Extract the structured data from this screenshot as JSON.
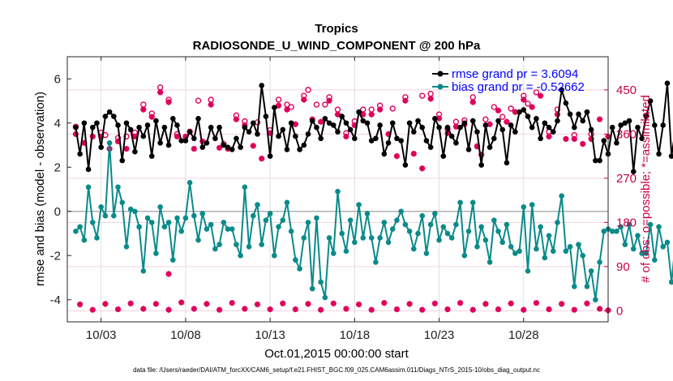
{
  "chart_data": {
    "type": "line",
    "title": "Tropics",
    "subtitle": "RADIOSONDE_U_WIND_COMPONENT @ 200 hPa",
    "xlabel": "Oct.01,2015 00:00:00 start",
    "ylabel": "rmse and bias (model - observation)",
    "y2label": "# of obs: o=possible; *=assimilated",
    "footnote": "data file: /Users/raeder/DAI/ATM_forcXX/CAM6_setup/f.e21.FHIST_BGC.f09_025.CAM6assim.011/Diags_NTrS_2015-10/obs_diag_output.nc",
    "xlim": [
      0,
      32
    ],
    "ylim": [
      -5,
      7
    ],
    "y2lim": [
      -22.5,
      517.5
    ],
    "grid": true,
    "legend_position": "top-right",
    "x_ticks": [
      2,
      7,
      12,
      17,
      22,
      27
    ],
    "x_tick_labels": [
      "10/03",
      "10/08",
      "10/13",
      "10/18",
      "10/23",
      "10/28"
    ],
    "y_ticks": [
      -4,
      -2,
      0,
      2,
      4,
      6
    ],
    "y_tick_labels": [
      "-4",
      "-2",
      "0",
      "2",
      "4",
      "6"
    ],
    "y2_ticks": [
      0,
      90,
      180,
      270,
      360,
      450
    ],
    "y2_tick_labels": [
      "0",
      "90",
      "180",
      "270",
      "360",
      "450"
    ],
    "zero_line": 0,
    "x_start": 0.5,
    "x_step": 0.25,
    "series": [
      {
        "name": "rmse",
        "legend_label": "rmse grand pr = 3.6094",
        "color": "#000000",
        "marker": "circle",
        "values": [
          3.8,
          2.6,
          4.0,
          1.9,
          3.8,
          4.0,
          2.9,
          4.3,
          4.5,
          4.3,
          3.9,
          2.3,
          4.0,
          3.7,
          2.7,
          3.8,
          3.4,
          3.9,
          2.5,
          4.1,
          3.1,
          3.8,
          3.0,
          4.2,
          3.9,
          3.2,
          3.2,
          3.6,
          3.3,
          4.2,
          2.9,
          3.1,
          3.8,
          3.3,
          3.8,
          3.0,
          2.9,
          2.8,
          3.3,
          2.9,
          3.8,
          3.6,
          4.0,
          3.5,
          5.7,
          4.3,
          2.5,
          4.7,
          3.4,
          3.7,
          2.8,
          4.0,
          3.4,
          2.8,
          3.0,
          3.5,
          4.1,
          3.8,
          3.3,
          4.2,
          4.0,
          3.9,
          3.6,
          4.3,
          4.0,
          3.7,
          3.3,
          4.5,
          4.1,
          4.0,
          3.2,
          3.3,
          3.9,
          2.6,
          3.1,
          4.0,
          3.3,
          3.2,
          2.1,
          4.0,
          3.6,
          4.1,
          3.8,
          3.2,
          2.9,
          4.2,
          3.8,
          2.5,
          3.8,
          3.4,
          3.1,
          3.8,
          4.0,
          2.8,
          4.1,
          3.6,
          2.1,
          3.9,
          2.9,
          3.3,
          4.1,
          3.7,
          2.2,
          3.9,
          3.6,
          4.5,
          4.6,
          4.3,
          3.8,
          4.2,
          3.3,
          4.0,
          3.8,
          3.6,
          4.1,
          5.5,
          4.9,
          4.4,
          3.8,
          4.4,
          4.1,
          4.5,
          3.7,
          2.3,
          2.3,
          3.2,
          2.6,
          3.8,
          3.1,
          3.9,
          4.0,
          4.1,
          1.8,
          3.8,
          3.3,
          4.3,
          5.0,
          3.9,
          2.6,
          3.9,
          5.8,
          2.5,
          3.8,
          4.4,
          3.3,
          3.1,
          3.6,
          3.2,
          2.8,
          3.5,
          3.4,
          3.4,
          2.6,
          3.6,
          3.1
        ]
      },
      {
        "name": "bias",
        "legend_label": "bias grand pr = -0.52662",
        "color": "#0b8a8a",
        "marker": "circle",
        "values": [
          -0.9,
          -0.7,
          -1.3,
          1.1,
          -0.5,
          -1.2,
          0.2,
          -0.2,
          3.1,
          -0.2,
          1.1,
          0.4,
          -1.6,
          0.1,
          0.0,
          -0.7,
          -2.7,
          -0.3,
          -0.5,
          -1.9,
          0.2,
          -0.7,
          -0.5,
          -2.2,
          -0.3,
          -0.9,
          -0.3,
          1.3,
          -0.2,
          -1.3,
          -0.1,
          -0.8,
          -0.6,
          -1.7,
          -1.5,
          -0.5,
          -0.8,
          -0.8,
          -1.5,
          -2.0,
          1.1,
          -1.6,
          -0.2,
          0.3,
          -1.5,
          -0.4,
          -0.1,
          -2.0,
          -0.7,
          -0.4,
          0.4,
          -0.9,
          -2.2,
          -2.6,
          -1.2,
          -0.5,
          -3.5,
          -0.3,
          -3.2,
          -3.9,
          -1.2,
          -1.9,
          0.9,
          -1.0,
          -1.8,
          -0.4,
          -1.4,
          0.3,
          -1.2,
          -0.1,
          -1.2,
          -2.3,
          -1.2,
          -0.5,
          -1.4,
          -0.8,
          -0.4,
          0.0,
          -0.6,
          -0.9,
          -1.7,
          -1.0,
          -0.2,
          -1.9,
          -0.6,
          -0.1,
          -1.3,
          -0.7,
          -1.0,
          -1.2,
          -0.6,
          0.4,
          -2.0,
          -0.9,
          0.4,
          -1.6,
          -0.7,
          -1.3,
          -2.3,
          -0.4,
          -0.9,
          -1.4,
          -0.6,
          -1.6,
          -1.9,
          -1.8,
          0.2,
          -2.7,
          0.3,
          -1.7,
          -0.7,
          -2.1,
          -1.1,
          -1.8,
          -0.5,
          0.7,
          -1.8,
          -1.6,
          -3.4,
          -1.5,
          -2.0,
          -3.4,
          -2.7,
          -4.0,
          -2.3,
          -0.9,
          -0.8,
          -0.9,
          -0.9,
          -0.7,
          -1.5,
          -0.6,
          -1.7,
          -1.1,
          -1.9,
          -1.9,
          -0.6,
          -2.2,
          -0.7,
          -1.6,
          -1.4,
          -3.2,
          -1.3,
          -1.7,
          -3.7,
          0.6,
          -0.4,
          0.3,
          -1.2,
          -4.3,
          -0.3,
          -1.1,
          -0.9,
          -0.6,
          -1.8,
          -1.3,
          -0.4,
          -0.9,
          -0.2,
          -0.1
        ]
      }
    ],
    "obs_possible": [
      {
        "x": 0.5,
        "y": 375
      },
      {
        "x": 2.0,
        "y": 363
      },
      {
        "x": 2.25,
        "y": 358
      },
      {
        "x": 3.0,
        "y": 352
      },
      {
        "x": 3.5,
        "y": 355
      },
      {
        "x": 4.0,
        "y": 363
      },
      {
        "x": 4.5,
        "y": 420
      },
      {
        "x": 5.0,
        "y": 402
      },
      {
        "x": 5.5,
        "y": 455
      },
      {
        "x": 6.0,
        "y": 430
      },
      {
        "x": 6.5,
        "y": 360
      },
      {
        "x": 7.25,
        "y": 365
      },
      {
        "x": 7.75,
        "y": 428
      },
      {
        "x": 8.5,
        "y": 430
      },
      {
        "x": 9.25,
        "y": 340
      },
      {
        "x": 10.0,
        "y": 398
      },
      {
        "x": 10.5,
        "y": 386
      },
      {
        "x": 11.25,
        "y": 384
      },
      {
        "x": 12.0,
        "y": 368
      },
      {
        "x": 12.5,
        "y": 430
      },
      {
        "x": 13.0,
        "y": 420
      },
      {
        "x": 13.25,
        "y": 415
      },
      {
        "x": 14.0,
        "y": 438
      },
      {
        "x": 14.25,
        "y": 450
      },
      {
        "x": 14.75,
        "y": 420
      },
      {
        "x": 15.25,
        "y": 420
      },
      {
        "x": 15.5,
        "y": 435
      },
      {
        "x": 16.0,
        "y": 410
      },
      {
        "x": 16.5,
        "y": 362
      },
      {
        "x": 17.0,
        "y": 386
      },
      {
        "x": 17.5,
        "y": 410
      },
      {
        "x": 18.0,
        "y": 410
      },
      {
        "x": 18.5,
        "y": 418
      },
      {
        "x": 19.25,
        "y": 412
      },
      {
        "x": 20.0,
        "y": 435
      },
      {
        "x": 21.0,
        "y": 438
      },
      {
        "x": 21.5,
        "y": 442
      },
      {
        "x": 22.0,
        "y": 400
      },
      {
        "x": 22.5,
        "y": 370
      },
      {
        "x": 23.0,
        "y": 385
      },
      {
        "x": 23.5,
        "y": 388
      },
      {
        "x": 24.0,
        "y": 435
      },
      {
        "x": 24.25,
        "y": 335
      },
      {
        "x": 24.75,
        "y": 390
      },
      {
        "x": 25.25,
        "y": 415
      },
      {
        "x": 25.75,
        "y": 395
      },
      {
        "x": 26.25,
        "y": 412
      },
      {
        "x": 27.0,
        "y": 438
      },
      {
        "x": 27.25,
        "y": 422
      },
      {
        "x": 27.75,
        "y": 445
      },
      {
        "x": 28.5,
        "y": 365
      },
      {
        "x": 29.0,
        "y": 410
      },
      {
        "x": 30.0,
        "y": 358
      },
      {
        "x": 31.0,
        "y": 360
      }
    ],
    "obs_assimilated": [
      {
        "x": 0.5,
        "y": 360
      },
      {
        "x": 1.0,
        "y": 342
      },
      {
        "x": 1.5,
        "y": 355
      },
      {
        "x": 2.0,
        "y": 355
      },
      {
        "x": 2.5,
        "y": 330
      },
      {
        "x": 3.0,
        "y": 345
      },
      {
        "x": 3.5,
        "y": 330
      },
      {
        "x": 4.0,
        "y": 355
      },
      {
        "x": 4.5,
        "y": 410
      },
      {
        "x": 5.0,
        "y": 395
      },
      {
        "x": 5.5,
        "y": 445
      },
      {
        "x": 6.0,
        "y": 425
      },
      {
        "x": 6.5,
        "y": 355
      },
      {
        "x": 7.0,
        "y": 355
      },
      {
        "x": 7.5,
        "y": 330
      },
      {
        "x": 8.0,
        "y": 345
      },
      {
        "x": 8.5,
        "y": 420
      },
      {
        "x": 9.0,
        "y": 332
      },
      {
        "x": 9.5,
        "y": 330
      },
      {
        "x": 10.0,
        "y": 390
      },
      {
        "x": 10.5,
        "y": 378
      },
      {
        "x": 11.0,
        "y": 336
      },
      {
        "x": 11.5,
        "y": 310
      },
      {
        "x": 12.0,
        "y": 362
      },
      {
        "x": 12.5,
        "y": 418
      },
      {
        "x": 13.0,
        "y": 410
      },
      {
        "x": 13.5,
        "y": 380
      },
      {
        "x": 14.0,
        "y": 430
      },
      {
        "x": 14.5,
        "y": 390
      },
      {
        "x": 15.0,
        "y": 385
      },
      {
        "x": 15.5,
        "y": 428
      },
      {
        "x": 16.0,
        "y": 400
      },
      {
        "x": 16.5,
        "y": 355
      },
      {
        "x": 17.0,
        "y": 378
      },
      {
        "x": 17.5,
        "y": 400
      },
      {
        "x": 18.0,
        "y": 400
      },
      {
        "x": 18.5,
        "y": 410
      },
      {
        "x": 19.0,
        "y": 360
      },
      {
        "x": 19.5,
        "y": 315
      },
      {
        "x": 20.0,
        "y": 428
      },
      {
        "x": 20.5,
        "y": 320
      },
      {
        "x": 21.0,
        "y": 290
      },
      {
        "x": 21.5,
        "y": 432
      },
      {
        "x": 22.0,
        "y": 392
      },
      {
        "x": 22.5,
        "y": 362
      },
      {
        "x": 23.0,
        "y": 375
      },
      {
        "x": 23.5,
        "y": 380
      },
      {
        "x": 24.0,
        "y": 425
      },
      {
        "x": 24.25,
        "y": 335
      },
      {
        "x": 24.5,
        "y": 318
      },
      {
        "x": 25.0,
        "y": 380
      },
      {
        "x": 25.5,
        "y": 408
      },
      {
        "x": 26.0,
        "y": 385
      },
      {
        "x": 26.5,
        "y": 405
      },
      {
        "x": 27.0,
        "y": 430
      },
      {
        "x": 27.5,
        "y": 415
      },
      {
        "x": 28.0,
        "y": 438
      },
      {
        "x": 28.5,
        "y": 355
      },
      {
        "x": 29.0,
        "y": 400
      },
      {
        "x": 29.5,
        "y": 350
      },
      {
        "x": 30.0,
        "y": 350
      },
      {
        "x": 30.5,
        "y": 340
      },
      {
        "x": 31.0,
        "y": 350
      },
      {
        "x": 31.5,
        "y": 390
      },
      {
        "x": 32.0,
        "y": 355
      },
      {
        "x": 6.0,
        "y": 75
      },
      {
        "x": 0.75,
        "y": 13
      },
      {
        "x": 1.5,
        "y": 2
      },
      {
        "x": 2.25,
        "y": 14
      },
      {
        "x": 3.0,
        "y": 3
      },
      {
        "x": 3.75,
        "y": 15
      },
      {
        "x": 4.5,
        "y": 4
      },
      {
        "x": 5.25,
        "y": 14
      },
      {
        "x": 6.0,
        "y": 2
      },
      {
        "x": 6.75,
        "y": 17
      },
      {
        "x": 7.5,
        "y": 4
      },
      {
        "x": 8.25,
        "y": 14
      },
      {
        "x": 9.0,
        "y": 2
      },
      {
        "x": 9.75,
        "y": 16
      },
      {
        "x": 10.5,
        "y": 4
      },
      {
        "x": 11.25,
        "y": 13
      },
      {
        "x": 12.0,
        "y": 3
      },
      {
        "x": 12.75,
        "y": 15
      },
      {
        "x": 13.5,
        "y": 3
      },
      {
        "x": 14.25,
        "y": 14
      },
      {
        "x": 15.0,
        "y": 2
      },
      {
        "x": 15.75,
        "y": 15
      },
      {
        "x": 16.5,
        "y": 4
      },
      {
        "x": 17.25,
        "y": 13
      },
      {
        "x": 18.0,
        "y": 2
      },
      {
        "x": 18.75,
        "y": 16
      },
      {
        "x": 19.5,
        "y": 3
      },
      {
        "x": 20.25,
        "y": 14
      },
      {
        "x": 21.0,
        "y": 2
      },
      {
        "x": 21.75,
        "y": 15
      },
      {
        "x": 22.5,
        "y": 3
      },
      {
        "x": 23.25,
        "y": 16
      },
      {
        "x": 24.0,
        "y": 2
      },
      {
        "x": 24.75,
        "y": 14
      },
      {
        "x": 25.5,
        "y": 3
      },
      {
        "x": 26.25,
        "y": 15
      },
      {
        "x": 27.0,
        "y": 2
      },
      {
        "x": 27.75,
        "y": 16
      },
      {
        "x": 28.5,
        "y": 3
      },
      {
        "x": 29.25,
        "y": 14
      },
      {
        "x": 30.0,
        "y": 2
      },
      {
        "x": 30.75,
        "y": 15
      },
      {
        "x": 31.5,
        "y": 4
      },
      {
        "x": 32.0,
        "y": 1
      }
    ],
    "obs_color": "#e0005a"
  }
}
